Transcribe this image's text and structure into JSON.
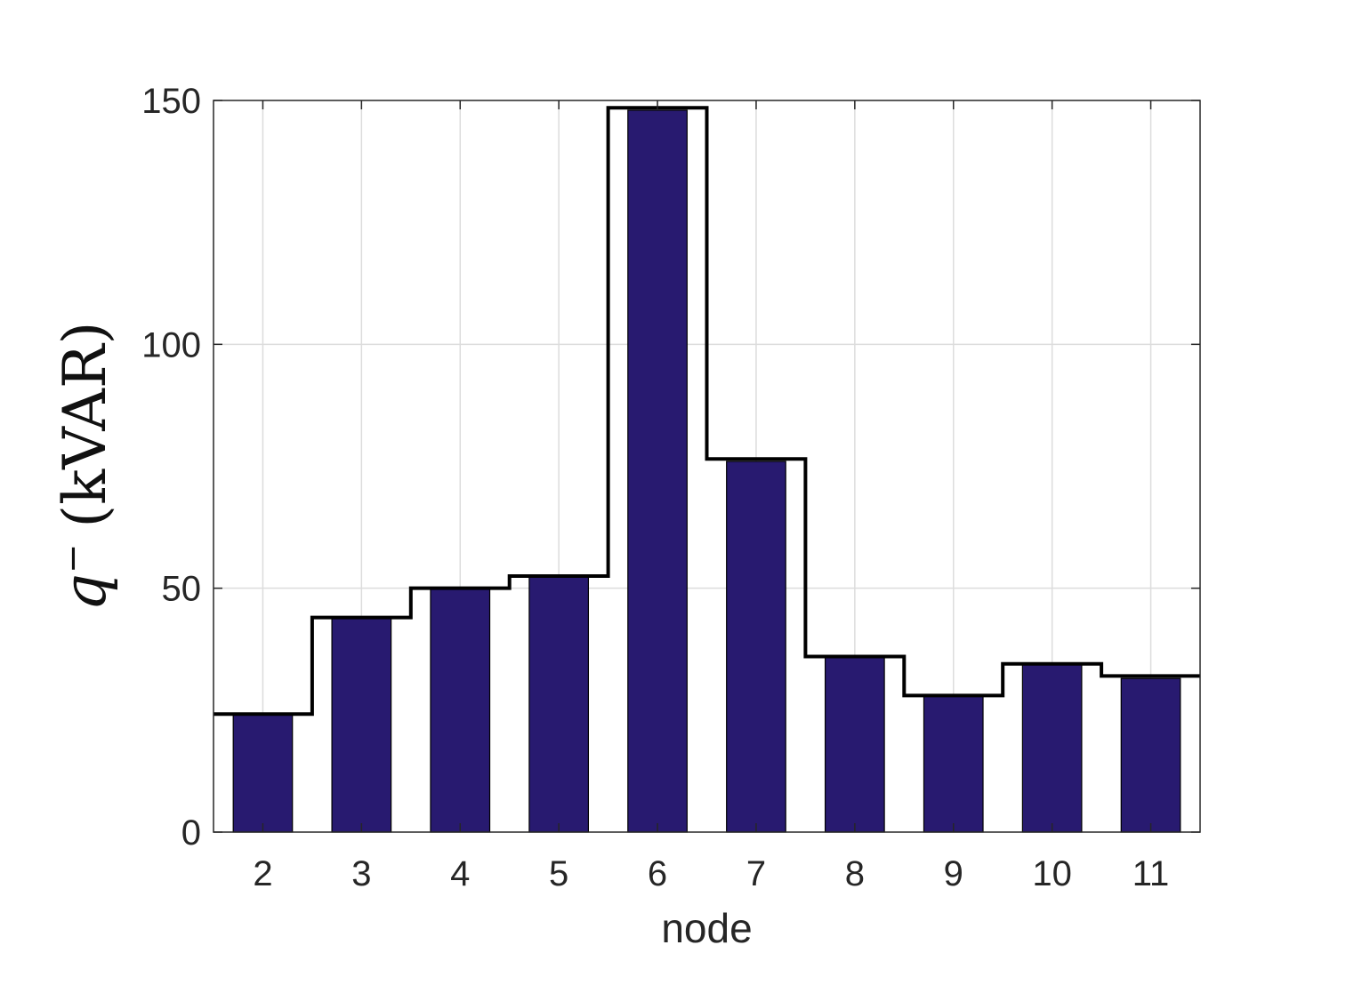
{
  "chart_data": {
    "type": "bar",
    "categories": [
      "2",
      "3",
      "4",
      "5",
      "6",
      "7",
      "8",
      "9",
      "10",
      "11"
    ],
    "series": [
      {
        "values": [
          24,
          44,
          50,
          52.5,
          148,
          76,
          36,
          28,
          34.5,
          31.5
        ],
        "color": "#281a70",
        "style": "bar"
      },
      {
        "values": [
          24.2,
          44,
          50,
          52.5,
          148.5,
          76.5,
          36,
          28,
          34.5,
          32
        ],
        "color": "#000000",
        "style": "stairs"
      }
    ],
    "xlabel": "node",
    "ylabel": {
      "symbol": "q",
      "superscript": "−",
      "unit": "(kVAR)"
    },
    "ylim": [
      0,
      150
    ],
    "yticks": [
      "0",
      "50",
      "100",
      "150"
    ],
    "grid": true,
    "legend": "none"
  }
}
